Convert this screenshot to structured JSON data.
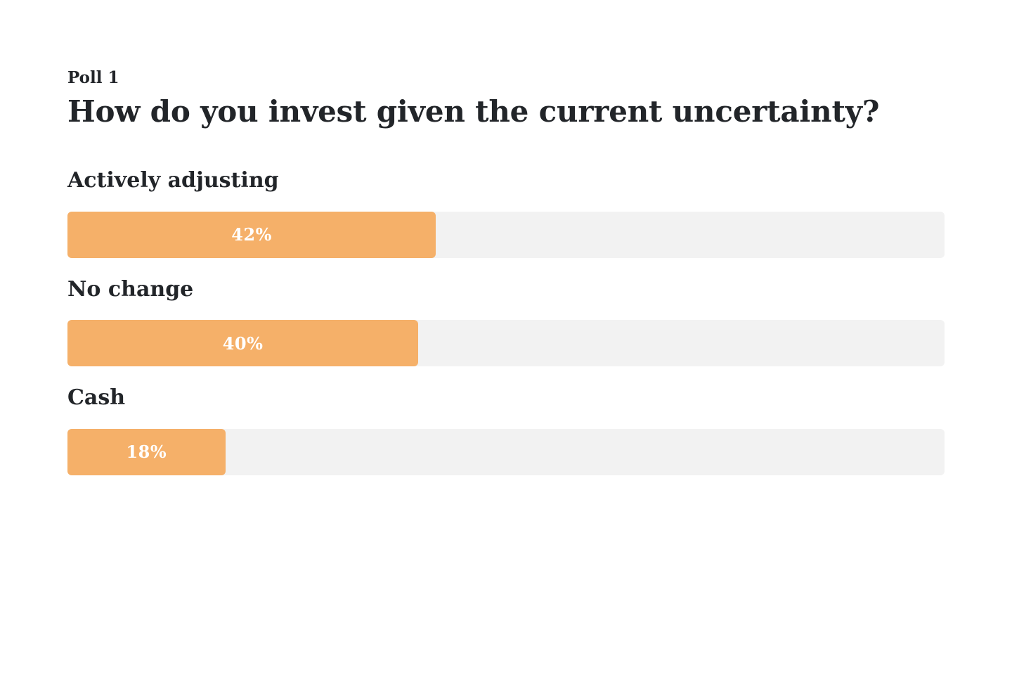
{
  "page": {
    "background_color": "#ffffff",
    "text_color": "#222529"
  },
  "poll": {
    "label": "Poll 1",
    "question": "How do you invest given the current uncertainty?",
    "options": [
      {
        "label": "Actively adjusting",
        "value": 42,
        "value_label": "42%"
      },
      {
        "label": "No change",
        "value": 40,
        "value_label": "40%"
      },
      {
        "label": "Cash",
        "value": 18,
        "value_label": "18%"
      }
    ]
  },
  "chart_data": {
    "type": "bar",
    "orientation": "horizontal",
    "title": "How do you invest given the current uncertainty?",
    "subtitle": "Poll 1",
    "categories": [
      "Actively adjusting",
      "No change",
      "Cash"
    ],
    "values": [
      42,
      40,
      18
    ],
    "value_suffix": "%",
    "xlim": [
      0,
      100
    ],
    "grid": false,
    "legend": false,
    "data_labels_position": "inside-center",
    "bar_color": "#f5b069",
    "track_color": "#f2f2f2",
    "label_color": "#ffffff"
  }
}
